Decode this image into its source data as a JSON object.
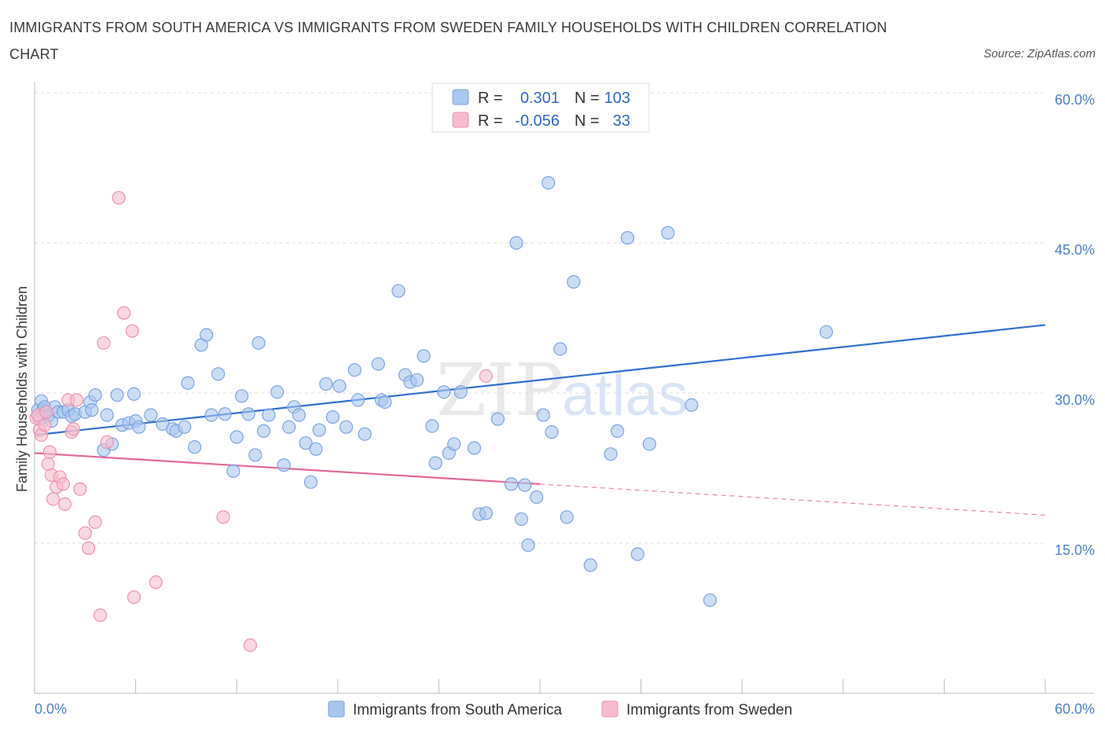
{
  "title": "IMMIGRANTS FROM SOUTH AMERICA VS IMMIGRANTS FROM SWEDEN FAMILY HOUSEHOLDS WITH CHILDREN CORRELATION CHART",
  "source": "Source: ZipAtlas.com",
  "watermark": {
    "zip": "ZIP",
    "atlas": "atlas"
  },
  "legend_top": {
    "rows": [
      {
        "r_label": "R =",
        "r_value": "0.301",
        "n_label": "N =",
        "n_value": "103"
      },
      {
        "r_label": "R =",
        "r_value": "-0.056",
        "n_label": "N =",
        "n_value": "33"
      }
    ]
  },
  "colors": {
    "blue_fill": "#a9c6ee",
    "blue_stroke": "#7aa3de",
    "blue_line": "#2e6fd0",
    "pink_fill": "#f6bccd",
    "pink_stroke": "#ec93b0",
    "pink_line": "#e2689a",
    "grid": "#dddddd",
    "axis": "#bbbbbb"
  },
  "chart_data": {
    "type": "scatter",
    "title": "IMMIGRANTS FROM SOUTH AMERICA VS IMMIGRANTS FROM SWEDEN FAMILY HOUSEHOLDS WITH CHILDREN CORRELATION CHART",
    "xlabel": "",
    "ylabel": "Family Households with Children",
    "xlim": [
      0,
      60
    ],
    "ylim": [
      0,
      60
    ],
    "x_tick_labels": [
      "0.0%",
      "60.0%"
    ],
    "y_ticks": [
      15,
      30,
      45,
      60
    ],
    "y_tick_labels": [
      "15.0%",
      "30.0%",
      "45.0%",
      "60.0%"
    ],
    "grid": true,
    "legend_position": "bottom-center",
    "series": [
      {
        "name": "Immigrants from South America",
        "color": "#a9c6ee",
        "trend": {
          "x": [
            0,
            60
          ],
          "y": [
            25.8,
            36.8
          ],
          "style": "solid"
        },
        "points": [
          [
            0.2,
            28.3
          ],
          [
            0.3,
            27.4
          ],
          [
            0.4,
            29.2
          ],
          [
            0.5,
            28.3
          ],
          [
            0.6,
            28.6
          ],
          [
            0.7,
            28.1
          ],
          [
            0.8,
            27.7
          ],
          [
            1.0,
            27.2
          ],
          [
            1.2,
            28.6
          ],
          [
            1.4,
            28.1
          ],
          [
            1.7,
            28.1
          ],
          [
            2.0,
            28.3
          ],
          [
            2.2,
            27.7
          ],
          [
            2.4,
            27.9
          ],
          [
            3.0,
            28.1
          ],
          [
            3.3,
            29.1
          ],
          [
            3.4,
            28.3
          ],
          [
            3.6,
            29.8
          ],
          [
            4.1,
            24.3
          ],
          [
            4.3,
            27.8
          ],
          [
            4.6,
            24.9
          ],
          [
            4.9,
            29.8
          ],
          [
            5.2,
            26.8
          ],
          [
            5.6,
            27.0
          ],
          [
            5.9,
            29.9
          ],
          [
            6.0,
            27.2
          ],
          [
            6.2,
            26.6
          ],
          [
            6.9,
            27.8
          ],
          [
            7.6,
            26.9
          ],
          [
            8.2,
            26.4
          ],
          [
            8.4,
            26.2
          ],
          [
            8.9,
            26.6
          ],
          [
            9.1,
            31.0
          ],
          [
            9.5,
            24.6
          ],
          [
            9.9,
            34.8
          ],
          [
            10.2,
            35.8
          ],
          [
            10.5,
            27.8
          ],
          [
            10.9,
            31.9
          ],
          [
            11.3,
            27.9
          ],
          [
            11.8,
            22.2
          ],
          [
            12.0,
            25.6
          ],
          [
            12.3,
            29.7
          ],
          [
            12.7,
            27.9
          ],
          [
            13.1,
            23.8
          ],
          [
            13.3,
            35.0
          ],
          [
            13.6,
            26.2
          ],
          [
            13.9,
            27.8
          ],
          [
            14.4,
            30.1
          ],
          [
            14.8,
            22.8
          ],
          [
            15.1,
            26.6
          ],
          [
            15.4,
            28.6
          ],
          [
            15.7,
            27.8
          ],
          [
            16.1,
            25.0
          ],
          [
            16.4,
            21.1
          ],
          [
            16.7,
            24.4
          ],
          [
            16.9,
            26.3
          ],
          [
            17.3,
            30.9
          ],
          [
            17.7,
            27.6
          ],
          [
            18.1,
            30.7
          ],
          [
            18.5,
            26.6
          ],
          [
            19.0,
            32.3
          ],
          [
            19.2,
            29.3
          ],
          [
            19.6,
            25.9
          ],
          [
            20.4,
            32.9
          ],
          [
            20.6,
            29.3
          ],
          [
            20.8,
            29.1
          ],
          [
            21.6,
            40.2
          ],
          [
            22.0,
            31.8
          ],
          [
            22.3,
            31.1
          ],
          [
            22.7,
            31.3
          ],
          [
            23.1,
            33.7
          ],
          [
            23.6,
            26.7
          ],
          [
            23.8,
            23.0
          ],
          [
            24.3,
            30.1
          ],
          [
            24.6,
            24.0
          ],
          [
            24.9,
            24.9
          ],
          [
            25.3,
            30.1
          ],
          [
            26.1,
            24.5
          ],
          [
            26.4,
            17.9
          ],
          [
            26.8,
            18.0
          ],
          [
            27.5,
            27.4
          ],
          [
            28.3,
            20.9
          ],
          [
            28.6,
            45.0
          ],
          [
            28.9,
            17.4
          ],
          [
            29.1,
            20.8
          ],
          [
            29.3,
            14.8
          ],
          [
            29.8,
            19.6
          ],
          [
            30.2,
            27.8
          ],
          [
            30.5,
            51.0
          ],
          [
            30.7,
            26.1
          ],
          [
            31.2,
            34.4
          ],
          [
            31.6,
            17.6
          ],
          [
            32.0,
            41.1
          ],
          [
            33.0,
            12.8
          ],
          [
            34.2,
            23.9
          ],
          [
            34.6,
            26.2
          ],
          [
            35.2,
            45.5
          ],
          [
            35.8,
            13.9
          ],
          [
            36.5,
            24.9
          ],
          [
            37.6,
            46.0
          ],
          [
            39.0,
            28.8
          ],
          [
            40.1,
            9.3
          ],
          [
            47.0,
            36.1
          ]
        ]
      },
      {
        "name": "Immigrants from Sweden",
        "color": "#f6bccd",
        "trend": {
          "x": [
            0,
            60
          ],
          "y": [
            24.0,
            17.8
          ],
          "style": "solid to x=30, dashed beyond"
        },
        "points": [
          [
            0.1,
            27.5
          ],
          [
            0.2,
            27.8
          ],
          [
            0.3,
            26.3
          ],
          [
            0.4,
            25.8
          ],
          [
            0.6,
            26.8
          ],
          [
            0.7,
            28.1
          ],
          [
            0.8,
            22.9
          ],
          [
            0.9,
            24.1
          ],
          [
            1.0,
            21.8
          ],
          [
            1.1,
            19.4
          ],
          [
            1.3,
            20.6
          ],
          [
            1.5,
            21.6
          ],
          [
            1.7,
            20.9
          ],
          [
            1.8,
            18.9
          ],
          [
            2.0,
            29.3
          ],
          [
            2.2,
            26.1
          ],
          [
            2.3,
            26.4
          ],
          [
            2.5,
            29.3
          ],
          [
            2.7,
            20.4
          ],
          [
            3.0,
            16.0
          ],
          [
            3.2,
            14.5
          ],
          [
            3.6,
            17.1
          ],
          [
            3.9,
            7.8
          ],
          [
            4.1,
            35.0
          ],
          [
            4.3,
            25.1
          ],
          [
            5.0,
            49.5
          ],
          [
            5.3,
            38.0
          ],
          [
            5.8,
            36.2
          ],
          [
            5.9,
            9.6
          ],
          [
            7.2,
            11.1
          ],
          [
            11.2,
            17.6
          ],
          [
            12.8,
            4.8
          ],
          [
            26.8,
            31.7
          ]
        ]
      }
    ]
  },
  "axis": {
    "ylabel": "Family Households with Children",
    "x_left": "0.0%",
    "x_right": "60.0%"
  }
}
